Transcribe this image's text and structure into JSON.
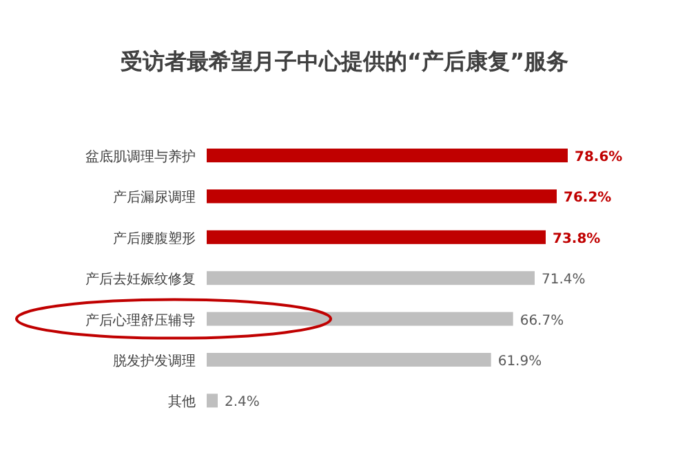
{
  "chart_data": {
    "type": "bar",
    "orientation": "horizontal",
    "title": "受访者最希望月子中心提供的“产后康复”服务",
    "categories": [
      "盆底肌调理与养护",
      "产后漏尿调理",
      "产后腰腹塑形",
      "产后去妊娠纹修复",
      "产后心理舒压辅导",
      "脱发护发调理",
      "其他"
    ],
    "values": [
      78.6,
      76.2,
      73.8,
      71.4,
      66.7,
      61.9,
      2.4
    ],
    "colors": [
      "#c00000",
      "#c00000",
      "#c00000",
      "#bfbfbf",
      "#bfbfbf",
      "#bfbfbf",
      "#bfbfbf"
    ],
    "value_labels": [
      "78.6%",
      "76.2%",
      "73.8%",
      "71.4%",
      "66.7%",
      "61.9%",
      "2.4%"
    ],
    "tick_labels": false
  }
}
